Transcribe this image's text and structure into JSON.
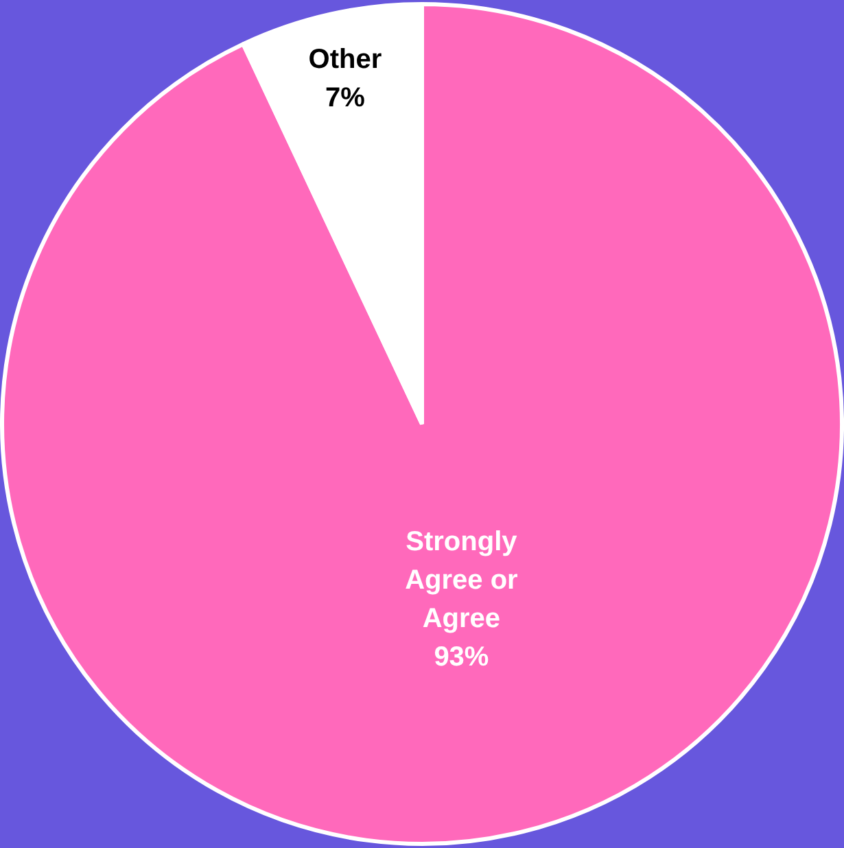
{
  "chart_data": {
    "type": "pie",
    "categories": [
      "Strongly Agree or Agree",
      "Other"
    ],
    "values": [
      93,
      7
    ],
    "colors": [
      "#ff69bb",
      "#ffffff"
    ],
    "value_labels": [
      "93%",
      "7%"
    ],
    "legend": false
  }
}
